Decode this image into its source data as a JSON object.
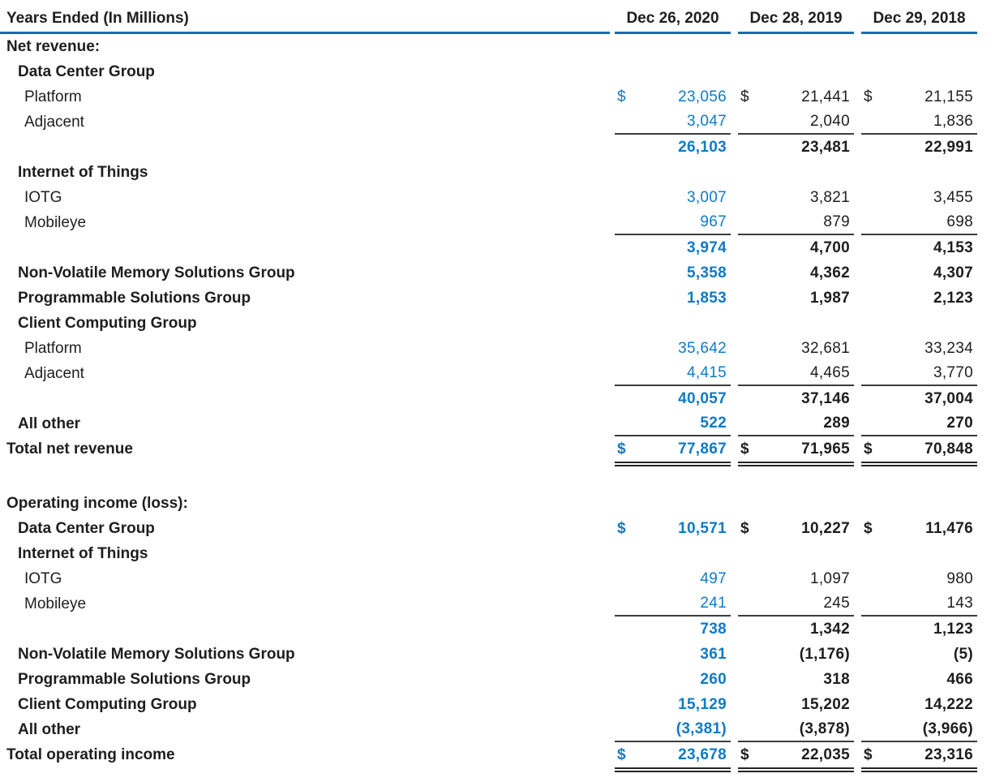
{
  "meta": {
    "document_type": "financial-segment-results-table"
  },
  "colors": {
    "accent_blue": "#0f7ac6",
    "header_rule_blue": "#0e6fb4",
    "text_color": "#1e1e1e",
    "sum_rule_gray": "#3c3c3c",
    "total_rule_dark": "#262626"
  },
  "table": {
    "row_header": "Years Ended (In Millions)",
    "columns": [
      "Dec 26, 2020",
      "Dec 28, 2019",
      "Dec 29, 2018"
    ],
    "currency_symbol": "$",
    "rows": [
      {
        "label": "Net revenue:",
        "indent": 0,
        "label_bold": true,
        "dollar": false,
        "values": null,
        "values_bold": false,
        "rule_below": "none"
      },
      {
        "label": "Data Center Group",
        "indent": 1,
        "label_bold": true,
        "dollar": false,
        "values": null,
        "values_bold": false,
        "rule_below": "none"
      },
      {
        "label": "Platform",
        "indent": 2,
        "label_bold": false,
        "dollar": true,
        "values": [
          "23,056",
          "21,441",
          "21,155"
        ],
        "values_bold": false,
        "rule_below": "none"
      },
      {
        "label": "Adjacent",
        "indent": 2,
        "label_bold": false,
        "dollar": false,
        "values": [
          "3,047",
          "2,040",
          "1,836"
        ],
        "values_bold": false,
        "rule_below": "single"
      },
      {
        "label": "",
        "indent": 0,
        "label_bold": false,
        "dollar": false,
        "values": [
          "26,103",
          "23,481",
          "22,991"
        ],
        "values_bold": true,
        "rule_below": "none"
      },
      {
        "label": "Internet of Things",
        "indent": 1,
        "label_bold": true,
        "dollar": false,
        "values": null,
        "values_bold": false,
        "rule_below": "none"
      },
      {
        "label": "IOTG",
        "indent": 2,
        "label_bold": false,
        "dollar": false,
        "values": [
          "3,007",
          "3,821",
          "3,455"
        ],
        "values_bold": false,
        "rule_below": "none"
      },
      {
        "label": "Mobileye",
        "indent": 2,
        "label_bold": false,
        "dollar": false,
        "values": [
          "967",
          "879",
          "698"
        ],
        "values_bold": false,
        "rule_below": "single"
      },
      {
        "label": "",
        "indent": 0,
        "label_bold": false,
        "dollar": false,
        "values": [
          "3,974",
          "4,700",
          "4,153"
        ],
        "values_bold": true,
        "rule_below": "none"
      },
      {
        "label": "Non-Volatile Memory Solutions Group",
        "indent": 1,
        "label_bold": true,
        "dollar": false,
        "values": [
          "5,358",
          "4,362",
          "4,307"
        ],
        "values_bold": true,
        "rule_below": "none"
      },
      {
        "label": "Programmable Solutions Group",
        "indent": 1,
        "label_bold": true,
        "dollar": false,
        "values": [
          "1,853",
          "1,987",
          "2,123"
        ],
        "values_bold": true,
        "rule_below": "none"
      },
      {
        "label": "Client Computing Group",
        "indent": 1,
        "label_bold": true,
        "dollar": false,
        "values": null,
        "values_bold": false,
        "rule_below": "none"
      },
      {
        "label": "Platform",
        "indent": 2,
        "label_bold": false,
        "dollar": false,
        "values": [
          "35,642",
          "32,681",
          "33,234"
        ],
        "values_bold": false,
        "rule_below": "none"
      },
      {
        "label": "Adjacent",
        "indent": 2,
        "label_bold": false,
        "dollar": false,
        "values": [
          "4,415",
          "4,465",
          "3,770"
        ],
        "values_bold": false,
        "rule_below": "single"
      },
      {
        "label": "",
        "indent": 0,
        "label_bold": false,
        "dollar": false,
        "values": [
          "40,057",
          "37,146",
          "37,004"
        ],
        "values_bold": true,
        "rule_below": "none"
      },
      {
        "label": "All other",
        "indent": 1,
        "label_bold": true,
        "dollar": false,
        "values": [
          "522",
          "289",
          "270"
        ],
        "values_bold": true,
        "rule_below": "single"
      },
      {
        "label": "Total net revenue",
        "indent": 0,
        "label_bold": true,
        "dollar": true,
        "values": [
          "77,867",
          "71,965",
          "70,848"
        ],
        "values_bold": true,
        "rule_below": "double"
      },
      {
        "label": "Operating income (loss):",
        "indent": 0,
        "label_bold": true,
        "dollar": false,
        "values": null,
        "values_bold": false,
        "rule_below": "none",
        "spacer_before": true
      },
      {
        "label": "Data Center Group",
        "indent": 1,
        "label_bold": true,
        "dollar": true,
        "values": [
          "10,571",
          "10,227",
          "11,476"
        ],
        "values_bold": true,
        "rule_below": "none"
      },
      {
        "label": "Internet of Things",
        "indent": 1,
        "label_bold": true,
        "dollar": false,
        "values": null,
        "values_bold": false,
        "rule_below": "none"
      },
      {
        "label": "IOTG",
        "indent": 2,
        "label_bold": false,
        "dollar": false,
        "values": [
          "497",
          "1,097",
          "980"
        ],
        "values_bold": false,
        "rule_below": "none"
      },
      {
        "label": "Mobileye",
        "indent": 2,
        "label_bold": false,
        "dollar": false,
        "values": [
          "241",
          "245",
          "143"
        ],
        "values_bold": false,
        "rule_below": "single"
      },
      {
        "label": "",
        "indent": 0,
        "label_bold": false,
        "dollar": false,
        "values": [
          "738",
          "1,342",
          "1,123"
        ],
        "values_bold": true,
        "rule_below": "none"
      },
      {
        "label": "Non-Volatile Memory Solutions Group",
        "indent": 1,
        "label_bold": true,
        "dollar": false,
        "values": [
          "361",
          "(1,176)",
          "(5)"
        ],
        "values_bold": true,
        "rule_below": "none"
      },
      {
        "label": "Programmable Solutions Group",
        "indent": 1,
        "label_bold": true,
        "dollar": false,
        "values": [
          "260",
          "318",
          "466"
        ],
        "values_bold": true,
        "rule_below": "none"
      },
      {
        "label": "Client Computing Group",
        "indent": 1,
        "label_bold": true,
        "dollar": false,
        "values": [
          "15,129",
          "15,202",
          "14,222"
        ],
        "values_bold": true,
        "rule_below": "none"
      },
      {
        "label": "All other",
        "indent": 1,
        "label_bold": true,
        "dollar": false,
        "values": [
          "(3,381)",
          "(3,878)",
          "(3,966)"
        ],
        "values_bold": true,
        "rule_below": "single"
      },
      {
        "label": "Total operating income",
        "indent": 0,
        "label_bold": true,
        "dollar": true,
        "values": [
          "23,678",
          "22,035",
          "23,316"
        ],
        "values_bold": true,
        "rule_below": "double"
      }
    ]
  }
}
